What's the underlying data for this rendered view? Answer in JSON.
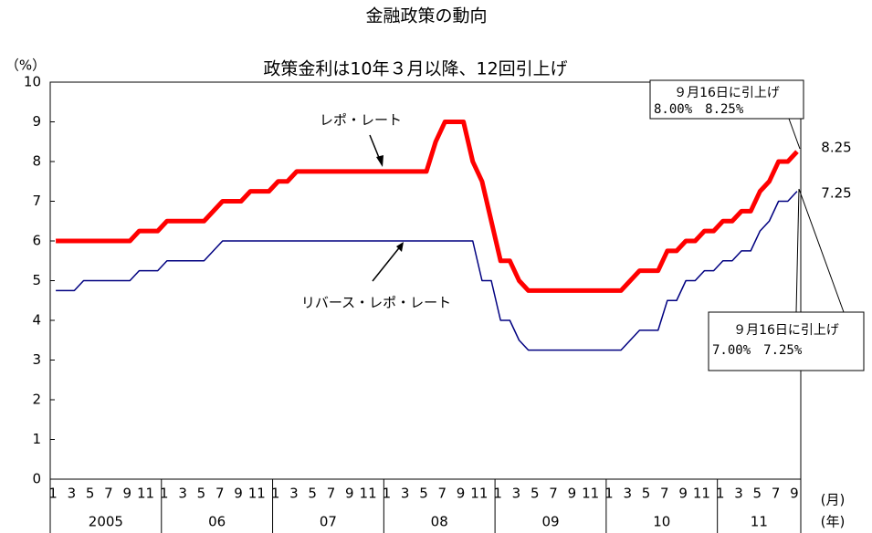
{
  "chart_data": {
    "type": "line",
    "title": "金融政策の動向",
    "subtitle": "政策金利は10年３月以降、12回引上げ",
    "y_label": "（%）",
    "x_unit_month": "(月)",
    "x_unit_year": "(年)",
    "categories": [
      "1",
      null,
      "3",
      null,
      "5",
      null,
      "7",
      null,
      "9",
      null,
      "11",
      null,
      "1",
      null,
      "3",
      null,
      "5",
      null,
      "7",
      null,
      "9",
      null,
      "11",
      null,
      "1",
      null,
      "3",
      null,
      "5",
      null,
      "7",
      null,
      "9",
      null,
      "11",
      null,
      "1",
      null,
      "3",
      null,
      "5",
      null,
      "7",
      null,
      "9",
      null,
      "11",
      null,
      "1",
      null,
      "3",
      null,
      "5",
      null,
      "7",
      null,
      "9",
      null,
      "11",
      null,
      "1",
      null,
      "3",
      null,
      "5",
      null,
      "7",
      null,
      "9",
      null,
      "11",
      null,
      "1",
      null,
      "3",
      null,
      "5",
      null,
      "7",
      null,
      "9"
    ],
    "years": [
      "2005",
      "06",
      "07",
      "08",
      "09",
      "10",
      "11"
    ],
    "series": [
      {
        "name": "レポ・レート",
        "color": "#ff0000",
        "values": [
          6,
          6,
          6,
          6,
          6,
          6,
          6,
          6,
          6,
          6.25,
          6.25,
          6.25,
          6.5,
          6.5,
          6.5,
          6.5,
          6.5,
          6.75,
          7,
          7,
          7,
          7.25,
          7.25,
          7.25,
          7.5,
          7.5,
          7.75,
          7.75,
          7.75,
          7.75,
          7.75,
          7.75,
          7.75,
          7.75,
          7.75,
          7.75,
          7.75,
          7.75,
          7.75,
          7.75,
          7.75,
          8.5,
          9,
          9,
          9,
          8,
          7.5,
          6.5,
          5.5,
          5.5,
          5,
          4.75,
          4.75,
          4.75,
          4.75,
          4.75,
          4.75,
          4.75,
          4.75,
          4.75,
          4.75,
          4.75,
          5,
          5.25,
          5.25,
          5.25,
          5.75,
          5.75,
          6,
          6,
          6.25,
          6.25,
          6.5,
          6.5,
          6.75,
          6.75,
          7.25,
          7.5,
          8,
          8,
          8.25
        ]
      },
      {
        "name": "リバース・レポ・レート",
        "color": "#000080",
        "values": [
          4.75,
          4.75,
          4.75,
          5,
          5,
          5,
          5,
          5,
          5,
          5.25,
          5.25,
          5.25,
          5.5,
          5.5,
          5.5,
          5.5,
          5.5,
          5.75,
          6,
          6,
          6,
          6,
          6,
          6,
          6,
          6,
          6,
          6,
          6,
          6,
          6,
          6,
          6,
          6,
          6,
          6,
          6,
          6,
          6,
          6,
          6,
          6,
          6,
          6,
          6,
          6,
          5,
          5,
          4,
          4,
          3.5,
          3.25,
          3.25,
          3.25,
          3.25,
          3.25,
          3.25,
          3.25,
          3.25,
          3.25,
          3.25,
          3.25,
          3.5,
          3.75,
          3.75,
          3.75,
          4.5,
          4.5,
          5,
          5,
          5.25,
          5.25,
          5.5,
          5.5,
          5.75,
          5.75,
          6.25,
          6.5,
          7,
          7,
          7.25
        ]
      }
    ],
    "end_labels": [
      "8.25",
      "7.25"
    ],
    "callouts": [
      {
        "line1": "９月16日に引上げ",
        "line2": "8.00%　8.25%"
      },
      {
        "line1": "９月16日に引上げ",
        "line2": "7.00%　7.25%"
      }
    ],
    "ylim": [
      0,
      10
    ],
    "yticks": [
      0,
      1,
      2,
      3,
      4,
      5,
      6,
      7,
      8,
      9,
      10
    ]
  }
}
